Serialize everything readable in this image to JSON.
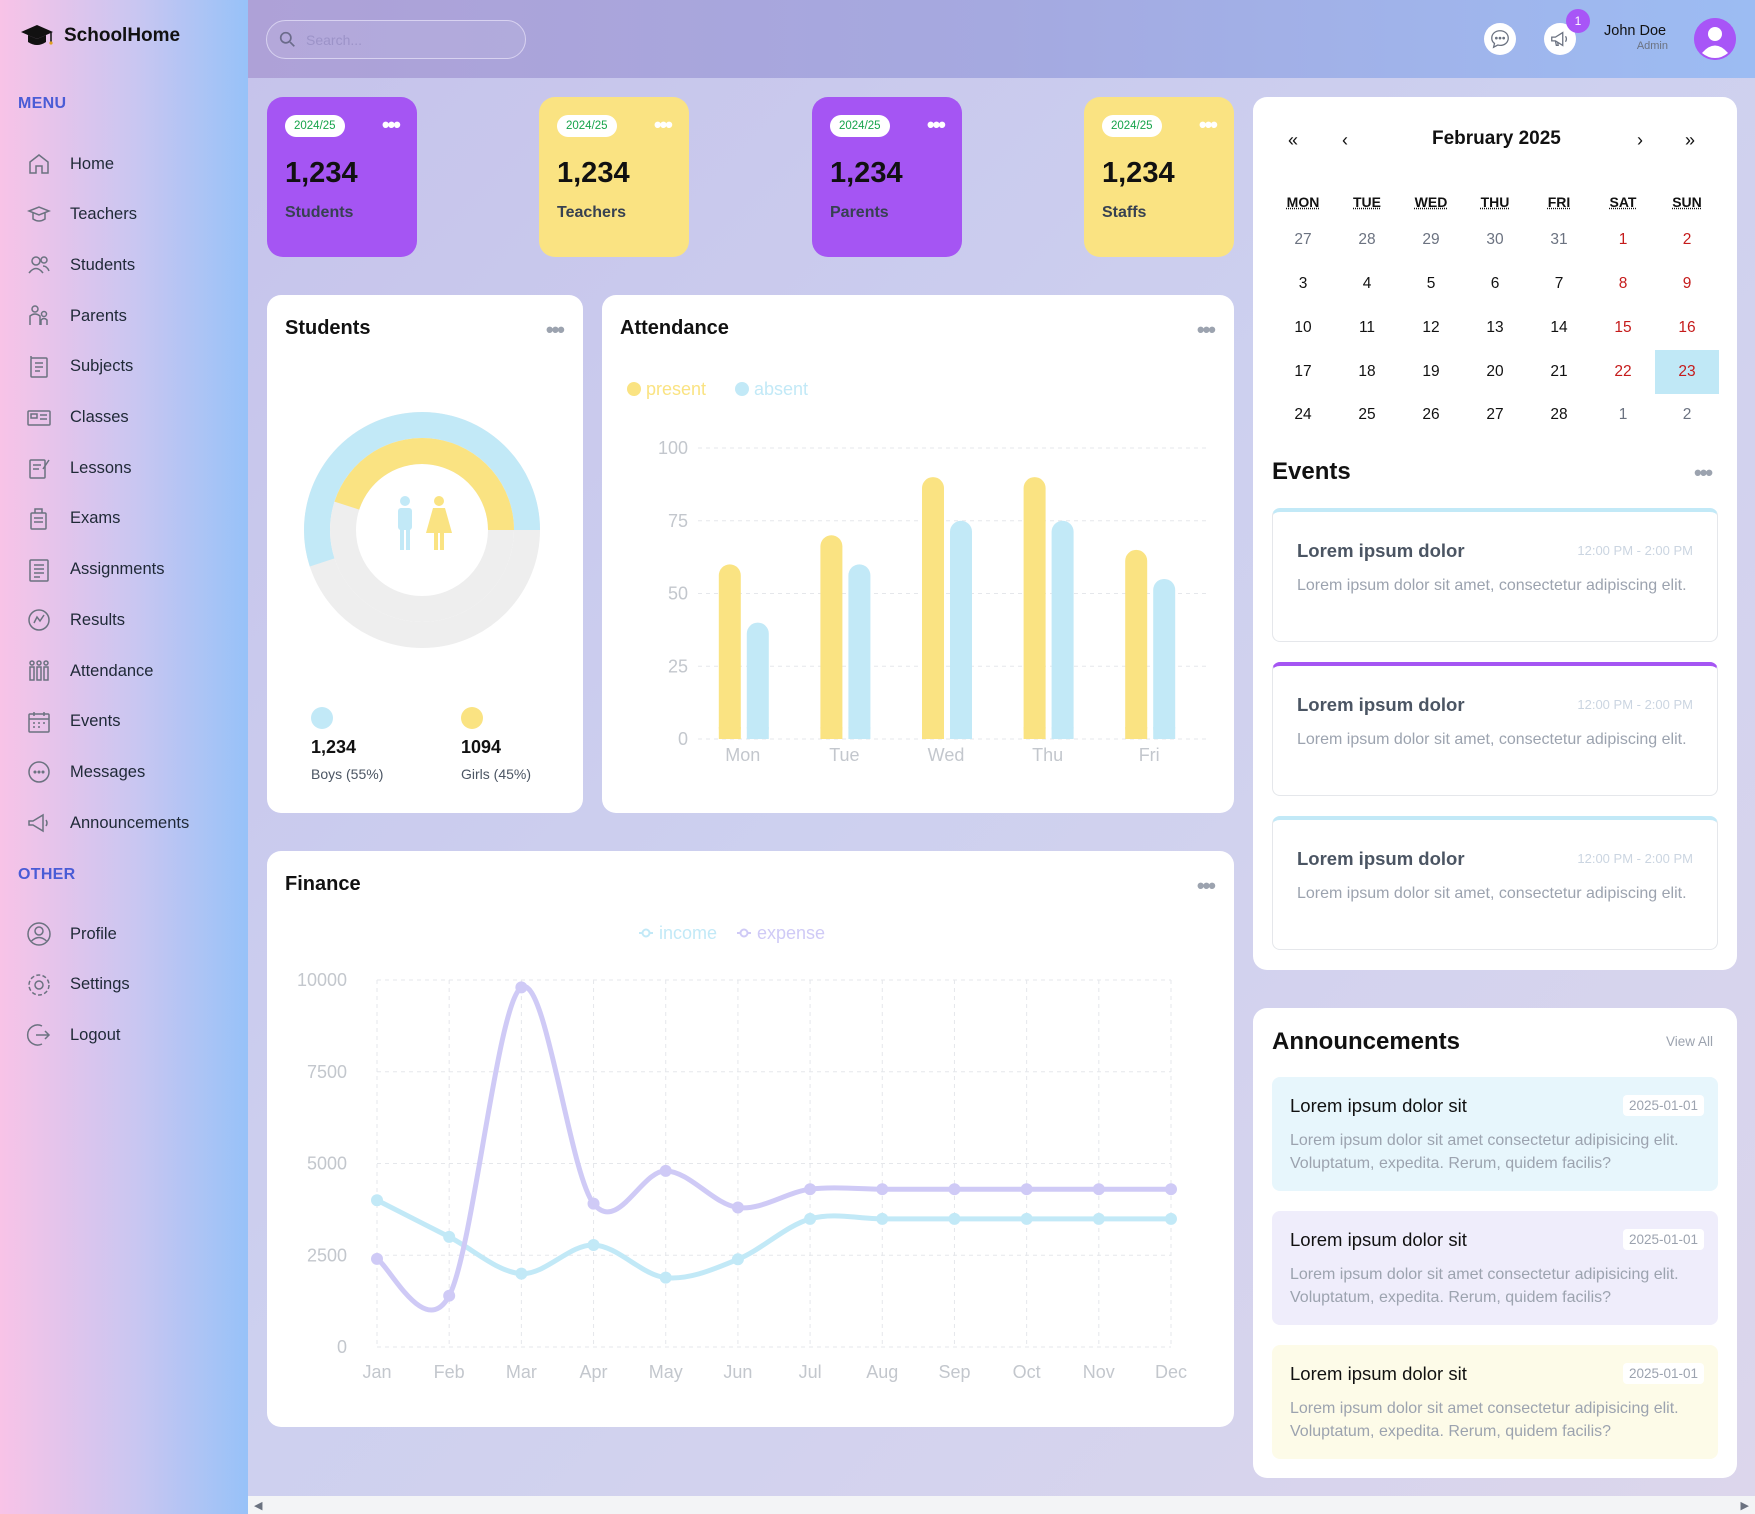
{
  "app": {
    "name": "SchoolHome"
  },
  "sidebar": {
    "menu_heading": "MENU",
    "other_heading": "OTHER",
    "menu_items": [
      {
        "label": "Home",
        "icon": "home-icon"
      },
      {
        "label": "Teachers",
        "icon": "teacher-icon"
      },
      {
        "label": "Students",
        "icon": "students-icon"
      },
      {
        "label": "Parents",
        "icon": "parents-icon"
      },
      {
        "label": "Subjects",
        "icon": "subjects-icon"
      },
      {
        "label": "Classes",
        "icon": "classes-icon"
      },
      {
        "label": "Lessons",
        "icon": "lessons-icon"
      },
      {
        "label": "Exams",
        "icon": "exams-icon"
      },
      {
        "label": "Assignments",
        "icon": "assignments-icon"
      },
      {
        "label": "Results",
        "icon": "results-icon"
      },
      {
        "label": "Attendance",
        "icon": "attendance-icon"
      },
      {
        "label": "Events",
        "icon": "calendar-icon"
      },
      {
        "label": "Messages",
        "icon": "message-icon"
      },
      {
        "label": "Announcements",
        "icon": "megaphone-icon"
      }
    ],
    "other_items": [
      {
        "label": "Profile",
        "icon": "profile-icon"
      },
      {
        "label": "Settings",
        "icon": "gear-icon"
      },
      {
        "label": "Logout",
        "icon": "logout-icon"
      }
    ]
  },
  "topbar": {
    "search_placeholder": "Search...",
    "notification_count": "1",
    "user_name": "John Doe",
    "user_role": "Admin"
  },
  "stats": [
    {
      "year": "2024/25",
      "value": "1,234",
      "label": "Students",
      "color": "#a555f3"
    },
    {
      "year": "2024/25",
      "value": "1,234",
      "label": "Teachers",
      "color": "#fae382"
    },
    {
      "year": "2024/25",
      "value": "1,234",
      "label": "Parents",
      "color": "#a555f3"
    },
    {
      "year": "2024/25",
      "value": "1,234",
      "label": "Staffs",
      "color": "#fae382"
    }
  ],
  "students_card": {
    "title": "Students",
    "boys": {
      "value": "1,234",
      "caption": "Boys (55%)",
      "color": "#c2e9f7",
      "fraction": 0.55
    },
    "girls": {
      "value": "1094",
      "caption": "Girls (45%)",
      "color": "#fae382",
      "fraction": 0.45
    }
  },
  "attendance_card": {
    "title": "Attendance",
    "chart_data": {
      "type": "bar",
      "categories": [
        "Mon",
        "Tue",
        "Wed",
        "Thu",
        "Fri"
      ],
      "series": [
        {
          "name": "present",
          "values": [
            60,
            70,
            90,
            90,
            65
          ],
          "color": "#fae382"
        },
        {
          "name": "absent",
          "values": [
            40,
            60,
            75,
            75,
            55
          ],
          "color": "#c2e9f7"
        }
      ],
      "yticks": [
        "0",
        "25",
        "50",
        "75",
        "100"
      ],
      "ylim": [
        0,
        100
      ],
      "grid": true,
      "legend": "top-left"
    }
  },
  "finance_card": {
    "title": "Finance",
    "chart_data": {
      "type": "line",
      "categories": [
        "Jan",
        "Feb",
        "Mar",
        "Apr",
        "May",
        "Jun",
        "Jul",
        "Aug",
        "Sep",
        "Oct",
        "Nov",
        "Dec"
      ],
      "series": [
        {
          "name": "income",
          "values": [
            4000,
            3000,
            2000,
            2780,
            1890,
            2390,
            3490,
            3490,
            3490,
            3490,
            3490,
            3490
          ],
          "color": "#c2e9f7"
        },
        {
          "name": "expense",
          "values": [
            2400,
            1398,
            9800,
            3908,
            4800,
            3800,
            4300,
            4300,
            4300,
            4300,
            4300,
            4300
          ],
          "color": "#cfcaf6"
        }
      ],
      "yticks": [
        "0",
        "2500",
        "5000",
        "7500",
        "10000"
      ],
      "ylim": [
        0,
        10000
      ],
      "grid": true,
      "legend": "top-center"
    }
  },
  "calendar": {
    "title": "February 2025",
    "nav": {
      "first": "«",
      "prev": "‹",
      "next": "›",
      "last": "»"
    },
    "weekdays": [
      "MON",
      "TUE",
      "WED",
      "THU",
      "FRI",
      "SAT",
      "SUN"
    ],
    "weeks": [
      [
        "27",
        "28",
        "29",
        "30",
        "31",
        "1",
        "2"
      ],
      [
        "3",
        "4",
        "5",
        "6",
        "7",
        "8",
        "9"
      ],
      [
        "10",
        "11",
        "12",
        "13",
        "14",
        "15",
        "16"
      ],
      [
        "17",
        "18",
        "19",
        "20",
        "21",
        "22",
        "23"
      ],
      [
        "24",
        "25",
        "26",
        "27",
        "28",
        "1",
        "2"
      ]
    ],
    "today": "23"
  },
  "events": {
    "title": "Events",
    "items": [
      {
        "title": "Lorem ipsum dolor",
        "time": "12:00 PM - 2:00 PM",
        "desc": "Lorem ipsum dolor sit amet, consectetur adipiscing elit.",
        "accent": "#c2e9f7"
      },
      {
        "title": "Lorem ipsum dolor",
        "time": "12:00 PM - 2:00 PM",
        "desc": "Lorem ipsum dolor sit amet, consectetur adipiscing elit.",
        "accent": "#a555f3"
      },
      {
        "title": "Lorem ipsum dolor",
        "time": "12:00 PM - 2:00 PM",
        "desc": "Lorem ipsum dolor sit amet, consectetur adipiscing elit.",
        "accent": "#c2e9f7"
      }
    ]
  },
  "announcements": {
    "title": "Announcements",
    "view_all": "View All",
    "items": [
      {
        "title": "Lorem ipsum dolor sit",
        "date": "2025-01-01",
        "desc": "Lorem ipsum dolor sit amet consectetur adipisicing elit. Voluptatum, expedita. Rerum, quidem facilis?",
        "bg": "#e7f6fc"
      },
      {
        "title": "Lorem ipsum dolor sit",
        "date": "2025-01-01",
        "desc": "Lorem ipsum dolor sit amet consectetur adipisicing elit. Voluptatum, expedita. Rerum, quidem facilis?",
        "bg": "#efedfb"
      },
      {
        "title": "Lorem ipsum dolor sit",
        "date": "2025-01-01",
        "desc": "Lorem ipsum dolor sit amet consectetur adipisicing elit. Voluptatum, expedita. Rerum, quidem facilis?",
        "bg": "#fdfbe8"
      }
    ]
  }
}
